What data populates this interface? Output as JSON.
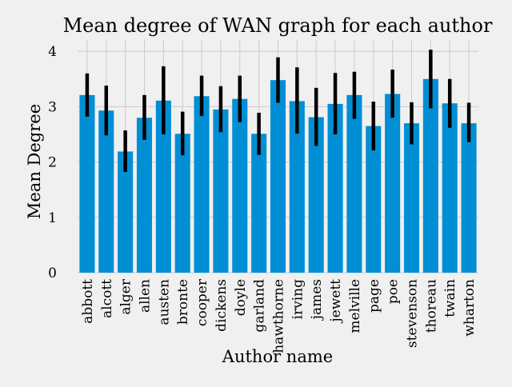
{
  "chart_data": {
    "type": "bar",
    "title": "Mean degree of WAN graph for each author",
    "xlabel": "Author name",
    "ylabel": "Mean Degree",
    "categories": [
      "abbott",
      "alcott",
      "alger",
      "allen",
      "austen",
      "bronte",
      "cooper",
      "dickens",
      "doyle",
      "garland",
      "hawthorne",
      "irving",
      "james",
      "jewett",
      "melville",
      "page",
      "poe",
      "stevenson",
      "thoreau",
      "twain",
      "wharton"
    ],
    "values": [
      3.21,
      2.93,
      2.19,
      2.8,
      3.11,
      2.51,
      3.19,
      2.95,
      3.14,
      2.51,
      3.48,
      3.1,
      2.81,
      3.05,
      3.21,
      2.65,
      3.23,
      2.7,
      3.5,
      3.06,
      2.7
    ],
    "error_low": [
      2.82,
      2.48,
      1.82,
      2.4,
      2.5,
      2.12,
      2.83,
      2.54,
      2.72,
      2.13,
      3.07,
      2.51,
      2.29,
      2.5,
      2.78,
      2.21,
      2.8,
      2.32,
      2.97,
      2.62,
      2.36
    ],
    "error_high": [
      3.6,
      3.38,
      2.57,
      3.21,
      3.73,
      2.91,
      3.56,
      3.37,
      3.56,
      2.89,
      3.89,
      3.71,
      3.34,
      3.61,
      3.63,
      3.09,
      3.67,
      3.08,
      4.03,
      3.5,
      3.07
    ],
    "ylim": [
      0,
      4.2
    ],
    "yticks": [
      0,
      1,
      2,
      3,
      4
    ],
    "grid": true,
    "colors": {
      "bar": "#008fd5",
      "error": "#000000",
      "grid": "#cbcbcb",
      "background": "#f0f0f0"
    }
  }
}
